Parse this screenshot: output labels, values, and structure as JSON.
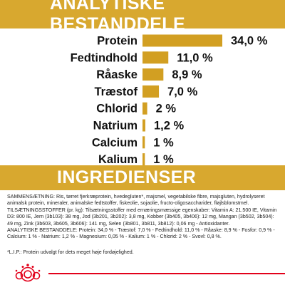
{
  "headings": {
    "analysis": "ANALYTISKE BESTANDDELE",
    "ingredients": "INGREDIENSER"
  },
  "chart_data": {
    "type": "bar",
    "orientation": "horizontal",
    "categories": [
      "Protein",
      "Fedtindhold",
      "Råaske",
      "Træstof",
      "Chlorid",
      "Natrium",
      "Calcium",
      "Kalium"
    ],
    "values": [
      34.0,
      11.0,
      8.9,
      7.0,
      2,
      1.2,
      1,
      1
    ],
    "value_labels": [
      "34,0 %",
      "11,0 %",
      "8,9 %",
      "7,0 %",
      "2 %",
      "1,2 %",
      "1 %",
      "1 %"
    ],
    "bar_color": "#d29f22",
    "grid": false,
    "legend": "none"
  },
  "ingredients": {
    "composition": "SAMMENSÆTNING: Ris, tørret fjerkræprotein, hvedegluten*, majsmel, vegetabilske fibre, majsgluten, hydrolyseret animalsk protein, mineraler, animalske fedtstoffer, fiskeolie, sojaolie, fructo-oligosaccharider, fløjlsblomstmel.",
    "additives": "TILSÆTNINGSSTOFFER (pr. kg): Tilsætningsstoffer med ernæringsmæssige egenskaber: Vitamin A: 21.500 IE, Vitamin D3: 800 IE, Jern (3b103): 38 mg, Jod (3b201, 3b202): 3,8 mg, Kobber (3b405, 3b406): 12 mg, Mangan (3b502, 3b504): 49 mg, Zink (3b603, 3b605, 3b606): 141 mg, Selen (3b801, 3b811, 3b812): 0,06 mg - Antioxidanter.",
    "analysis": "ANALYTISKE BESTANDDELE: Protein: 34,0 % - Træstof: 7,0 % - Fedtindhold: 11,0 % - Råaske: 8,9 % - Fosfor: 0,9 % - Calcium: 1 % - Natrium: 1,2 % - Magnesium: 0,05 % - Kalium: 1 % - Chlorid: 2 % - Svovl: 0,8 %.",
    "note": "*L.I.P.: Protein udvalgt for dets meget høje fordøjelighed."
  },
  "colors": {
    "accent": "#d8a82f",
    "brand_red": "#e2001a"
  },
  "icons": {
    "logo": "royal-canin-crown-logo"
  }
}
